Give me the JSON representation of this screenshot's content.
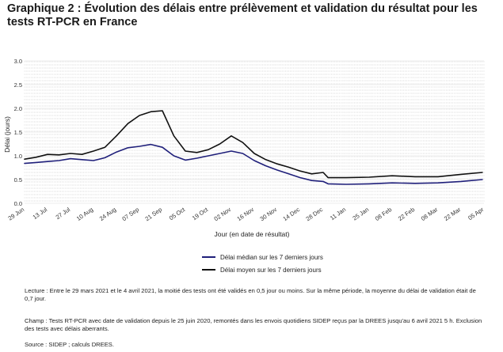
{
  "title": "Graphique 2 : Évolution des délais entre prélèvement et validation du résultat pour les tests RT-PCR en France",
  "chart_data": {
    "type": "line",
    "xlabel": "Jour (en date de résultat)",
    "ylabel": "Délai (jours)",
    "ylim": [
      0,
      3.0
    ],
    "xlim": [
      "2020-06-29",
      "2021-04-05"
    ],
    "y_ticks": [
      "0.0",
      "0.5",
      "1.0",
      "1.5",
      "2.0",
      "2.5",
      "3.0"
    ],
    "x_ticks": [
      {
        "date": "2020-06-29",
        "label": "29 Jun"
      },
      {
        "date": "2020-07-13",
        "label": "13 Jul"
      },
      {
        "date": "2020-07-27",
        "label": "27 Jul"
      },
      {
        "date": "2020-08-10",
        "label": "10 Aug"
      },
      {
        "date": "2020-08-24",
        "label": "24 Aug"
      },
      {
        "date": "2020-09-07",
        "label": "07 Sep"
      },
      {
        "date": "2020-09-21",
        "label": "21 Sep"
      },
      {
        "date": "2020-10-05",
        "label": "05 Oct"
      },
      {
        "date": "2020-10-19",
        "label": "19 Oct"
      },
      {
        "date": "2020-11-02",
        "label": "02 Nov"
      },
      {
        "date": "2020-11-16",
        "label": "16 Nov"
      },
      {
        "date": "2020-11-30",
        "label": "30 Nov"
      },
      {
        "date": "2020-12-14",
        "label": "14 Dec"
      },
      {
        "date": "2020-12-28",
        "label": "28 Dec"
      },
      {
        "date": "2021-01-11",
        "label": "11 Jan"
      },
      {
        "date": "2021-01-25",
        "label": "25 Jan"
      },
      {
        "date": "2021-02-08",
        "label": "08 Feb"
      },
      {
        "date": "2021-02-22",
        "label": "22 Feb"
      },
      {
        "date": "2021-03-08",
        "label": "08 Mar"
      },
      {
        "date": "2021-03-22",
        "label": "22 Mar"
      },
      {
        "date": "2021-04-05",
        "label": "05 Apr"
      }
    ],
    "grid": true,
    "legend_position": "bottom",
    "series": [
      {
        "name": "Délai médian sur les 7 derniers jours",
        "color": "#1f1f7a",
        "points": [
          [
            "2020-06-29",
            0.84
          ],
          [
            "2020-07-06",
            0.86
          ],
          [
            "2020-07-13",
            0.88
          ],
          [
            "2020-07-20",
            0.9
          ],
          [
            "2020-07-27",
            0.94
          ],
          [
            "2020-08-03",
            0.92
          ],
          [
            "2020-08-10",
            0.9
          ],
          [
            "2020-08-17",
            0.96
          ],
          [
            "2020-08-24",
            1.08
          ],
          [
            "2020-08-31",
            1.17
          ],
          [
            "2020-09-07",
            1.2
          ],
          [
            "2020-09-14",
            1.24
          ],
          [
            "2020-09-21",
            1.18
          ],
          [
            "2020-09-28",
            1.0
          ],
          [
            "2020-10-05",
            0.91
          ],
          [
            "2020-10-12",
            0.95
          ],
          [
            "2020-10-19",
            1.0
          ],
          [
            "2020-10-26",
            1.05
          ],
          [
            "2020-11-02",
            1.1
          ],
          [
            "2020-11-09",
            1.05
          ],
          [
            "2020-11-16",
            0.9
          ],
          [
            "2020-11-23",
            0.79
          ],
          [
            "2020-11-30",
            0.7
          ],
          [
            "2020-12-07",
            0.62
          ],
          [
            "2020-12-14",
            0.54
          ],
          [
            "2020-12-21",
            0.48
          ],
          [
            "2020-12-28",
            0.46
          ],
          [
            "2020-12-31",
            0.41
          ],
          [
            "2021-01-11",
            0.4
          ],
          [
            "2021-01-25",
            0.41
          ],
          [
            "2021-02-08",
            0.43
          ],
          [
            "2021-02-22",
            0.42
          ],
          [
            "2021-03-08",
            0.43
          ],
          [
            "2021-03-22",
            0.46
          ],
          [
            "2021-04-04",
            0.5
          ]
        ]
      },
      {
        "name": "Délai moyen sur les 7 derniers jours",
        "color": "#111111",
        "points": [
          [
            "2020-06-29",
            0.93
          ],
          [
            "2020-07-06",
            0.97
          ],
          [
            "2020-07-13",
            1.03
          ],
          [
            "2020-07-20",
            1.02
          ],
          [
            "2020-07-27",
            1.05
          ],
          [
            "2020-08-03",
            1.03
          ],
          [
            "2020-08-10",
            1.1
          ],
          [
            "2020-08-17",
            1.18
          ],
          [
            "2020-08-24",
            1.42
          ],
          [
            "2020-08-31",
            1.68
          ],
          [
            "2020-09-07",
            1.85
          ],
          [
            "2020-09-14",
            1.93
          ],
          [
            "2020-09-21",
            1.95
          ],
          [
            "2020-09-28",
            1.42
          ],
          [
            "2020-10-05",
            1.1
          ],
          [
            "2020-10-12",
            1.07
          ],
          [
            "2020-10-19",
            1.13
          ],
          [
            "2020-10-26",
            1.25
          ],
          [
            "2020-11-02",
            1.42
          ],
          [
            "2020-11-09",
            1.28
          ],
          [
            "2020-11-16",
            1.05
          ],
          [
            "2020-11-23",
            0.92
          ],
          [
            "2020-11-30",
            0.83
          ],
          [
            "2020-12-07",
            0.76
          ],
          [
            "2020-12-14",
            0.68
          ],
          [
            "2020-12-21",
            0.62
          ],
          [
            "2020-12-28",
            0.65
          ],
          [
            "2020-12-31",
            0.54
          ],
          [
            "2021-01-11",
            0.54
          ],
          [
            "2021-01-25",
            0.55
          ],
          [
            "2021-02-08",
            0.58
          ],
          [
            "2021-02-22",
            0.56
          ],
          [
            "2021-03-08",
            0.56
          ],
          [
            "2021-03-22",
            0.61
          ],
          [
            "2021-04-04",
            0.65
          ]
        ]
      }
    ]
  },
  "notes": {
    "lecture": "Lecture : Entre le 29 mars 2021 et le 4 avril 2021, la moitié des tests ont été validés en 0,5 jour ou moins. Sur la même période, la moyenne du délai de validation était de 0,7 jour.",
    "champ": "Champ : Tests RT-PCR avec date de validation depuis le 25 juin 2020, remontés dans les envois quotidiens SIDEP reçus par la DREES jusqu'au 6 avril 2021 5 h. Exclusion des tests avec délais aberrants.",
    "source": "Source : SIDEP ; calculs DREES."
  }
}
